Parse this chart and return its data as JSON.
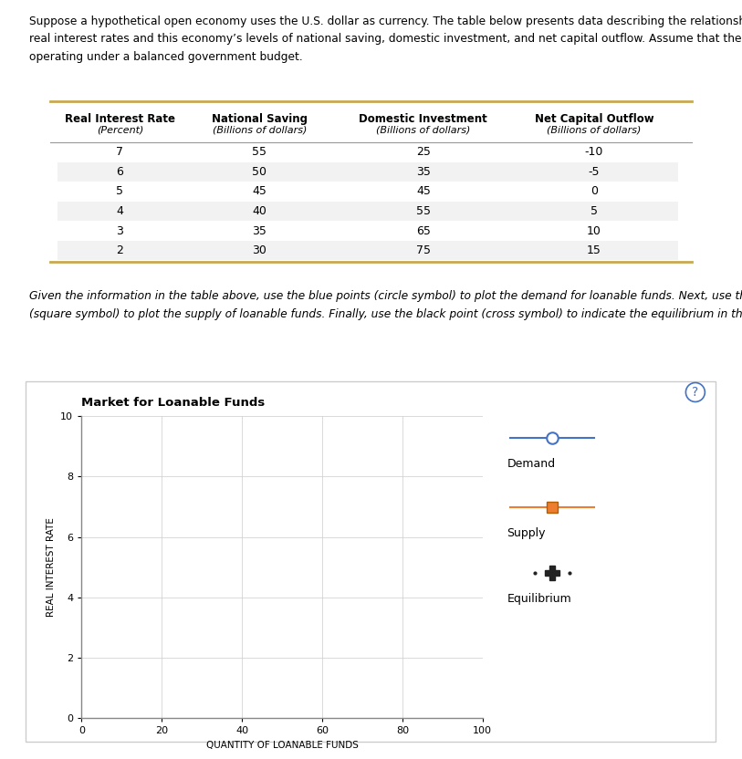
{
  "paragraph_text": "Suppose a hypothetical open economy uses the U.S. dollar as currency. The table below presents data describing the relationship between different\nreal interest rates and this economy’s levels of national saving, domestic investment, and net capital outflow. Assume that the economy is currently\noperating under a balanced government budget.",
  "table_headers_line1": [
    "Real Interest Rate",
    "National Saving",
    "Domestic Investment",
    "Net Capital Outflow"
  ],
  "table_headers_line2": [
    "(Percent)",
    "(Billions of dollars)",
    "(Billions of dollars)",
    "(Billions of dollars)"
  ],
  "table_data": [
    [
      7,
      55,
      25,
      -10
    ],
    [
      6,
      50,
      35,
      -5
    ],
    [
      5,
      45,
      45,
      0
    ],
    [
      4,
      40,
      55,
      5
    ],
    [
      3,
      35,
      65,
      10
    ],
    [
      2,
      30,
      75,
      15
    ]
  ],
  "instruction_text": "Given the information in the table above, use the blue points (circle symbol) to plot the demand for loanable funds. Next, use the orange points\n(square symbol) to plot the supply of loanable funds. Finally, use the black point (cross symbol) to indicate the equilibrium in this market.",
  "chart_title": "Market for Loanable Funds",
  "xlabel": "QUANTITY OF LOANABLE FUNDS",
  "ylabel": "REAL INTEREST RATE",
  "xlim": [
    0,
    100
  ],
  "ylim": [
    0,
    10
  ],
  "xticks": [
    0,
    20,
    40,
    60,
    80,
    100
  ],
  "yticks": [
    0,
    2,
    4,
    6,
    8,
    10
  ],
  "grid_color": "#cccccc",
  "background_color": "#ffffff",
  "chart_bg_color": "#ffffff",
  "demand_color": "#4472c4",
  "supply_color": "#ed7d31",
  "equilibrium_color": "#222222",
  "table_row_odd_color": "#f2f2f2",
  "table_row_even_color": "#ffffff",
  "table_border_color": "#c8a951",
  "outer_border_color": "#cccccc"
}
